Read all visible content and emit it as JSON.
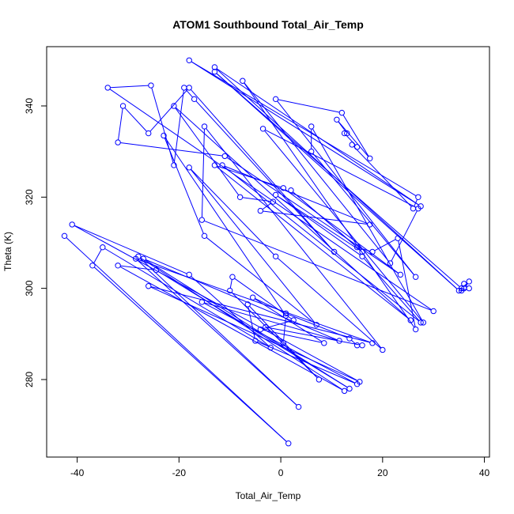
{
  "chart_data": {
    "type": "line",
    "title": "ATOM1 Southbound Total_Air_Temp",
    "xlabel": "Total_Air_Temp",
    "ylabel": "Theta (K)",
    "xlim": [
      -46,
      41
    ],
    "ylim": [
      263,
      353
    ],
    "xticks": [
      -40,
      -20,
      0,
      20,
      40
    ],
    "yticks": [
      280,
      300,
      320,
      340
    ],
    "grid": false,
    "legend": "none",
    "marker": "open-circle",
    "line_color": "#0000ff",
    "series": [
      {
        "points": [
          [
            -42.5,
            311.5
          ],
          [
            1.5,
            266.0
          ],
          [
            -37.0,
            305.0
          ],
          [
            -35.0,
            309.0
          ],
          [
            -2.0,
            287.0
          ],
          [
            -18.0,
            303.0
          ],
          [
            -41.0,
            314.0
          ],
          [
            15.5,
            279.5
          ],
          [
            -26.0,
            300.5
          ],
          [
            18.0,
            288.0
          ],
          [
            -28.5,
            306.5
          ],
          [
            3.5,
            274.0
          ],
          [
            -28.0,
            307.0
          ],
          [
            12.5,
            277.5
          ],
          [
            -32.0,
            305.0
          ],
          [
            -24.5,
            304.0
          ],
          [
            13.5,
            278.0
          ],
          [
            -27.0,
            306.5
          ],
          [
            11.5,
            288.5
          ],
          [
            -15.5,
            297.0
          ],
          [
            15.0,
            279.0
          ],
          [
            -5.0,
            288.5
          ],
          [
            -6.5,
            296.5
          ],
          [
            7.5,
            280.0
          ],
          [
            -10.0,
            299.5
          ],
          [
            -9.5,
            302.5
          ],
          [
            2.5,
            293.0
          ],
          [
            -4.0,
            291.0
          ],
          [
            8.5,
            288.0
          ],
          [
            -5.5,
            298.0
          ],
          [
            1.0,
            294.5
          ],
          [
            13.5,
            289.0
          ],
          [
            15.0,
            287.5
          ],
          [
            16.0,
            287.5
          ],
          [
            -3.0,
            291.5
          ],
          [
            0.5,
            288.0
          ],
          [
            1.0,
            294.0
          ],
          [
            -23.0,
            333.5
          ],
          [
            -15.0,
            311.5
          ],
          [
            7.0,
            292.0
          ],
          [
            -18.0,
            326.5
          ],
          [
            -1.0,
            307.0
          ],
          [
            20.0,
            286.5
          ],
          [
            -15.0,
            335.5
          ],
          [
            -15.5,
            315.0
          ],
          [
            30.0,
            295.0
          ],
          [
            -34.0,
            344.0
          ],
          [
            -25.5,
            344.5
          ],
          [
            -21.0,
            327.0
          ],
          [
            -19.0,
            344.0
          ],
          [
            -17.0,
            341.5
          ],
          [
            10.5,
            308.0
          ],
          [
            -18.0,
            344.0
          ],
          [
            -26.0,
            334.0
          ],
          [
            -31.0,
            340.0
          ],
          [
            -32.0,
            332.0
          ],
          [
            -11.0,
            329.0
          ],
          [
            23.5,
            303.0
          ],
          [
            0.5,
            322.0
          ],
          [
            -13.0,
            327.0
          ],
          [
            25.5,
            293.0
          ],
          [
            -21.0,
            340.0
          ],
          [
            -8.0,
            320.0
          ],
          [
            -1.5,
            319.0
          ],
          [
            -4.0,
            317.0
          ],
          [
            17.5,
            314.0
          ],
          [
            -11.5,
            327.0
          ],
          [
            27.5,
            292.5
          ],
          [
            16.0,
            307.0
          ],
          [
            -1.0,
            320.5
          ],
          [
            16.0,
            308.0
          ],
          [
            2.0,
            321.5
          ],
          [
            15.0,
            309.0
          ],
          [
            18.0,
            308.0
          ],
          [
            23.0,
            311.0
          ],
          [
            26.5,
            291.0
          ],
          [
            -7.5,
            345.5
          ],
          [
            21.5,
            305.5
          ],
          [
            27.0,
            317.5
          ],
          [
            -3.5,
            335.0
          ],
          [
            28.0,
            292.5
          ],
          [
            6.0,
            335.5
          ],
          [
            6.0,
            330.0
          ],
          [
            26.5,
            302.5
          ],
          [
            -1.0,
            341.5
          ],
          [
            12.0,
            338.5
          ],
          [
            17.5,
            328.5
          ],
          [
            11.0,
            337.0
          ],
          [
            13.0,
            334.0
          ],
          [
            12.5,
            334.0
          ],
          [
            15.0,
            331.0
          ],
          [
            14.0,
            331.5
          ],
          [
            26.0,
            317.5
          ],
          [
            27.0,
            320.0
          ],
          [
            -18.0,
            350.0
          ],
          [
            27.5,
            318.0
          ],
          [
            -13.0,
            348.5
          ],
          [
            35.0,
            299.5
          ],
          [
            -13.0,
            347.5
          ],
          [
            35.5,
            300.0
          ],
          [
            37.0,
            301.5
          ],
          [
            36.0,
            300.0
          ],
          [
            35.5,
            299.5
          ],
          [
            37.0,
            300.0
          ],
          [
            36.0,
            301.0
          ]
        ]
      }
    ]
  }
}
